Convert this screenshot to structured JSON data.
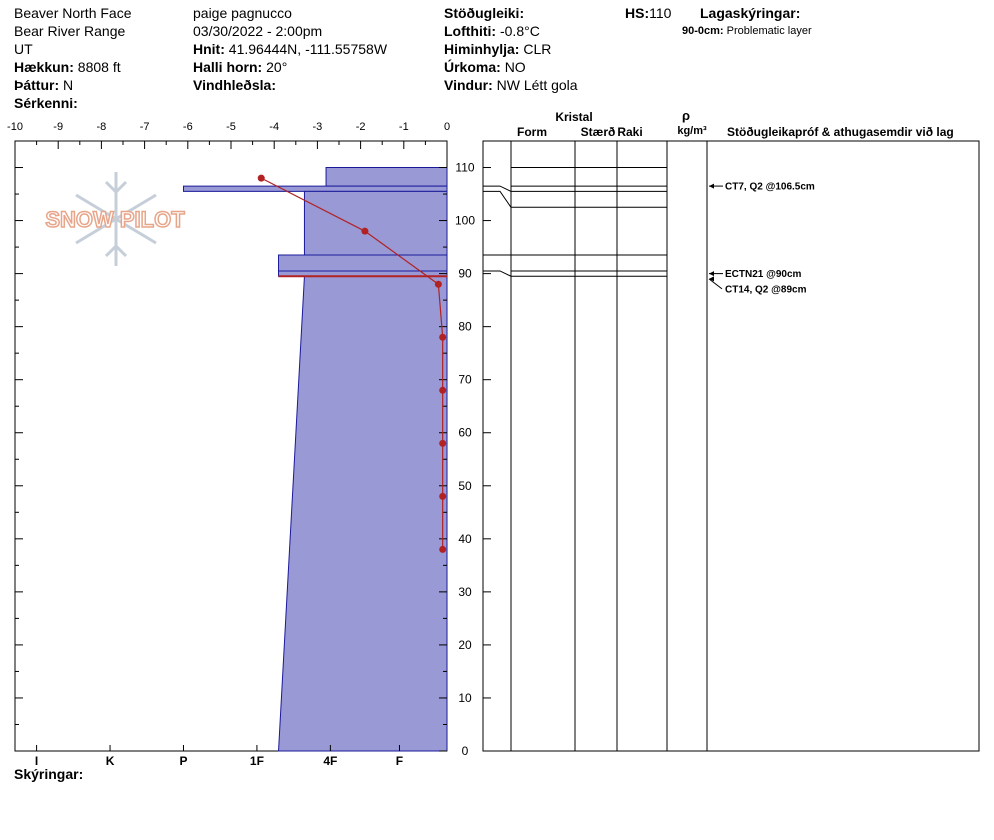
{
  "header": {
    "location": "Beaver North Face",
    "range": "Bear River Range",
    "state": "UT",
    "elevation_label": "Hækkun:",
    "elevation_value": "8808 ft",
    "aspect_label": "Þáttur:",
    "aspect_value": "N",
    "features_label": "Sérkenni:",
    "observer": "paige pagnucco",
    "datetime": "03/30/2022 - 2:00pm",
    "coords_label": "Hnit:",
    "coords_value": "41.96444N, -111.55758W",
    "slope_label": "Halli horn:",
    "slope_value": "20°",
    "wind_loading_label": "Vindhleðsla:",
    "stability_label": "Stöðugleiki:",
    "air_temp_label": "Lofthiti:",
    "air_temp_value": "-0.8°C",
    "sky_label": "Himinhylja:",
    "sky_value": "CLR",
    "precip_label": "Úrkoma:",
    "precip_value": "NO",
    "wind_label": "Vindur:",
    "wind_value": "NW Létt gola",
    "hs_label": "HS:",
    "hs_value": "110",
    "layer_notes_label": "Lagaskýringar:",
    "layer_note_depth": "90-0cm:",
    "layer_note_text": "Problematic layer"
  },
  "legend_label": "Skýringar:",
  "logo_text": "SNOW PILOT",
  "colors": {
    "hardness_fill": "#9999d6",
    "hardness_stroke": "#1a1a99",
    "temp_line": "#b22222"
  },
  "right_panel": {
    "crystal_label": "Kristal",
    "form_label": "Form",
    "size_label": "Stærð",
    "moisture_label": "Raki",
    "rho_label": "ρ",
    "density_unit": "kg/m³",
    "tests_label": "Stöðugleikapróf & athugasemdir við lag"
  },
  "chart_data": {
    "type": "snow_profile",
    "temp_axis": {
      "range": [
        -10,
        0
      ],
      "ticks": [
        "-10",
        "-9",
        "-8",
        "-7",
        "-6",
        "-5",
        "-4",
        "-3",
        "-2",
        "-1",
        "0"
      ]
    },
    "depth_axis": {
      "range": [
        0,
        115
      ],
      "ticks": [
        0,
        10,
        20,
        30,
        40,
        50,
        60,
        70,
        80,
        90,
        100,
        110
      ]
    },
    "hardness_scale": [
      "I",
      "K",
      "P",
      "1F",
      "4F",
      "F"
    ],
    "hardness_scale_values": [
      -9.5,
      -7.8,
      -6.1,
      -4.4,
      -2.7,
      -1.1
    ],
    "hardness_layers": [
      {
        "top": 110,
        "bottom": 106.5,
        "left_bottom": -2.8,
        "left_top": -2.8
      },
      {
        "top": 106.5,
        "bottom": 105.5,
        "left_bottom": -6.1,
        "left_top": -6.1
      },
      {
        "top": 105.5,
        "bottom": 93.5,
        "left_bottom": -3.3,
        "left_top": -3.3
      },
      {
        "top": 93.5,
        "bottom": 90.5,
        "left_bottom": -3.9,
        "left_top": -3.9
      },
      {
        "top": 90.5,
        "bottom": 89.5,
        "left_bottom": -3.9,
        "left_top": -3.9
      },
      {
        "top": 89.5,
        "bottom": 0,
        "left_bottom": -3.9,
        "left_top": -3.3
      }
    ],
    "temperature_profile": [
      {
        "depth": 108,
        "temp": -4.3
      },
      {
        "depth": 98,
        "temp": -1.9
      },
      {
        "depth": 88,
        "temp": -0.2
      },
      {
        "depth": 78,
        "temp": -0.1
      },
      {
        "depth": 68,
        "temp": -0.1
      },
      {
        "depth": 58,
        "temp": -0.1
      },
      {
        "depth": 48,
        "temp": -0.1
      },
      {
        "depth": 38,
        "temp": -0.1
      }
    ],
    "problem_layer_depth": 89.5,
    "layer_boundaries": [
      110,
      106.5,
      105.5,
      102.5,
      93.5,
      90.5,
      89.5
    ],
    "tests": [
      {
        "label": "CT7, Q2 @106.5cm",
        "depth": 106.5
      },
      {
        "label": "ECTN21 @90cm",
        "depth": 90
      },
      {
        "label": "CT14, Q2 @89cm",
        "depth": 89
      }
    ]
  }
}
